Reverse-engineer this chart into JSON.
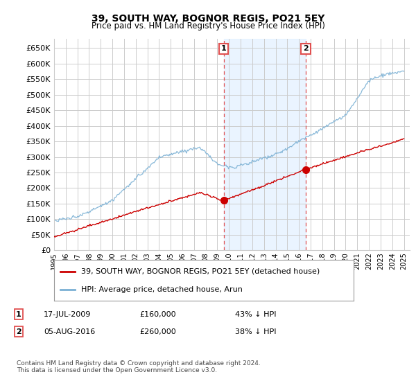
{
  "title": "39, SOUTH WAY, BOGNOR REGIS, PO21 5EY",
  "subtitle": "Price paid vs. HM Land Registry's House Price Index (HPI)",
  "legend_line1": "39, SOUTH WAY, BOGNOR REGIS, PO21 5EY (detached house)",
  "legend_line2": "HPI: Average price, detached house, Arun",
  "annotation1_label": "1",
  "annotation1_date": "17-JUL-2009",
  "annotation1_price": "£160,000",
  "annotation1_pct": "43% ↓ HPI",
  "annotation2_label": "2",
  "annotation2_date": "05-AUG-2016",
  "annotation2_price": "£260,000",
  "annotation2_pct": "38% ↓ HPI",
  "footnote": "Contains HM Land Registry data © Crown copyright and database right 2024.\nThis data is licensed under the Open Government Licence v3.0.",
  "red_line_color": "#cc0000",
  "blue_line_color": "#7ab0d4",
  "shaded_region_color": "#ddeeff",
  "annotation_vline_color": "#e05050",
  "grid_color": "#cccccc",
  "ylim": [
    0,
    680000
  ],
  "yticks": [
    0,
    50000,
    100000,
    150000,
    200000,
    250000,
    300000,
    350000,
    400000,
    450000,
    500000,
    550000,
    600000,
    650000
  ],
  "xlim_start": 1995.0,
  "xlim_end": 2025.5,
  "sale1_year": 2009.54,
  "sale1_price": 160000,
  "sale2_year": 2016.59,
  "sale2_price": 260000
}
